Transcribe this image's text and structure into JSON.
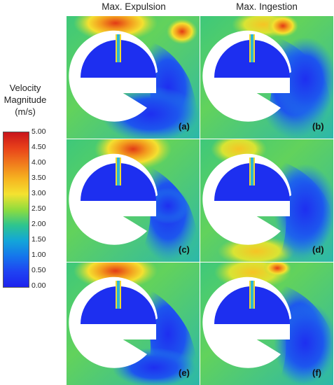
{
  "columns": {
    "expulsion": "Max. Expulsion",
    "ingestion": "Max. Ingestion"
  },
  "legend": {
    "title_lines": [
      "Velocity",
      "Magnitude",
      "(m/s)"
    ],
    "ticks": [
      "5.00",
      "4.50",
      "4.00",
      "3.50",
      "3.00",
      "2.50",
      "2.00",
      "1.50",
      "1.00",
      "0.50",
      "0.00"
    ],
    "colors": [
      "#c8141b",
      "#e8401a",
      "#f07a1c",
      "#f6b420",
      "#f4e230",
      "#8fdc3e",
      "#2ec58e",
      "#13a6d8",
      "#1576ec",
      "#1f43f2",
      "#1d22ee"
    ]
  },
  "panels": [
    {
      "label": "(a)"
    },
    {
      "label": "(b)"
    },
    {
      "label": "(c)"
    },
    {
      "label": "(d)"
    },
    {
      "label": "(e)"
    },
    {
      "label": "(f)"
    }
  ]
}
